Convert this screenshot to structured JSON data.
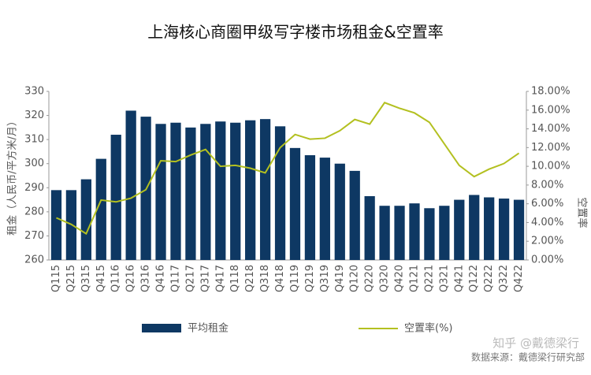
{
  "chart_data": {
    "type": "bar_line",
    "title": "上海核心商圈甲级写字楼市场租金&空置率",
    "ylabel": "租金（人民币/平方米/月）",
    "y2label": "空置率",
    "categories": [
      "Q115",
      "Q215",
      "Q315",
      "Q415",
      "Q116",
      "Q216",
      "Q316",
      "Q416",
      "Q117",
      "Q217",
      "Q317",
      "Q417",
      "Q118",
      "Q218",
      "Q318",
      "Q418",
      "Q119",
      "Q219",
      "Q319",
      "Q419",
      "Q120",
      "Q220",
      "Q320",
      "Q420",
      "Q121",
      "Q221",
      "Q321",
      "Q421",
      "Q122",
      "Q222",
      "Q322",
      "Q422"
    ],
    "series": [
      {
        "name": "平均租金",
        "type": "bar",
        "color": "#0e3863",
        "values": [
          289,
          289,
          293.5,
          302,
          312,
          322,
          319.5,
          316.5,
          317,
          315,
          316.5,
          317.5,
          317,
          318,
          318.5,
          315.5,
          306.5,
          303.5,
          302.5,
          300,
          297,
          286.5,
          282.5,
          282.5,
          283.5,
          281.5,
          282.5,
          285,
          287,
          286,
          285.5,
          285
        ]
      },
      {
        "name": "空置率(%)",
        "type": "line",
        "axis": "y2",
        "color": "#b3c020",
        "values": [
          4.5,
          3.8,
          2.8,
          6.4,
          6.2,
          6.6,
          7.5,
          10.6,
          10.5,
          11.2,
          11.8,
          10.0,
          10.1,
          9.8,
          9.3,
          12.0,
          13.4,
          12.9,
          13.0,
          13.8,
          15.0,
          14.5,
          16.8,
          16.2,
          15.7,
          14.7,
          12.4,
          10.1,
          8.9,
          9.7,
          10.3,
          11.4
        ]
      }
    ],
    "ylim": [
      260,
      330
    ],
    "yticks": [
      260,
      270,
      280,
      290,
      300,
      310,
      320,
      330
    ],
    "y2lim": [
      0,
      18
    ],
    "y2ticks": [
      {
        "value": 0,
        "label": "0.00%"
      },
      {
        "value": 2,
        "label": "2.00%"
      },
      {
        "value": 4,
        "label": "4.00%"
      },
      {
        "value": 6,
        "label": "6.00%"
      },
      {
        "value": 8,
        "label": "8.00%"
      },
      {
        "value": 10,
        "label": "10.00%"
      },
      {
        "value": 12,
        "label": "12.00%"
      },
      {
        "value": 14,
        "label": "14.00%"
      },
      {
        "value": 16,
        "label": "16.00%"
      },
      {
        "value": 18,
        "label": "18.00%"
      }
    ],
    "source": "数据来源：戴德梁行研究部",
    "watermark": "知乎 @戴德梁行"
  }
}
